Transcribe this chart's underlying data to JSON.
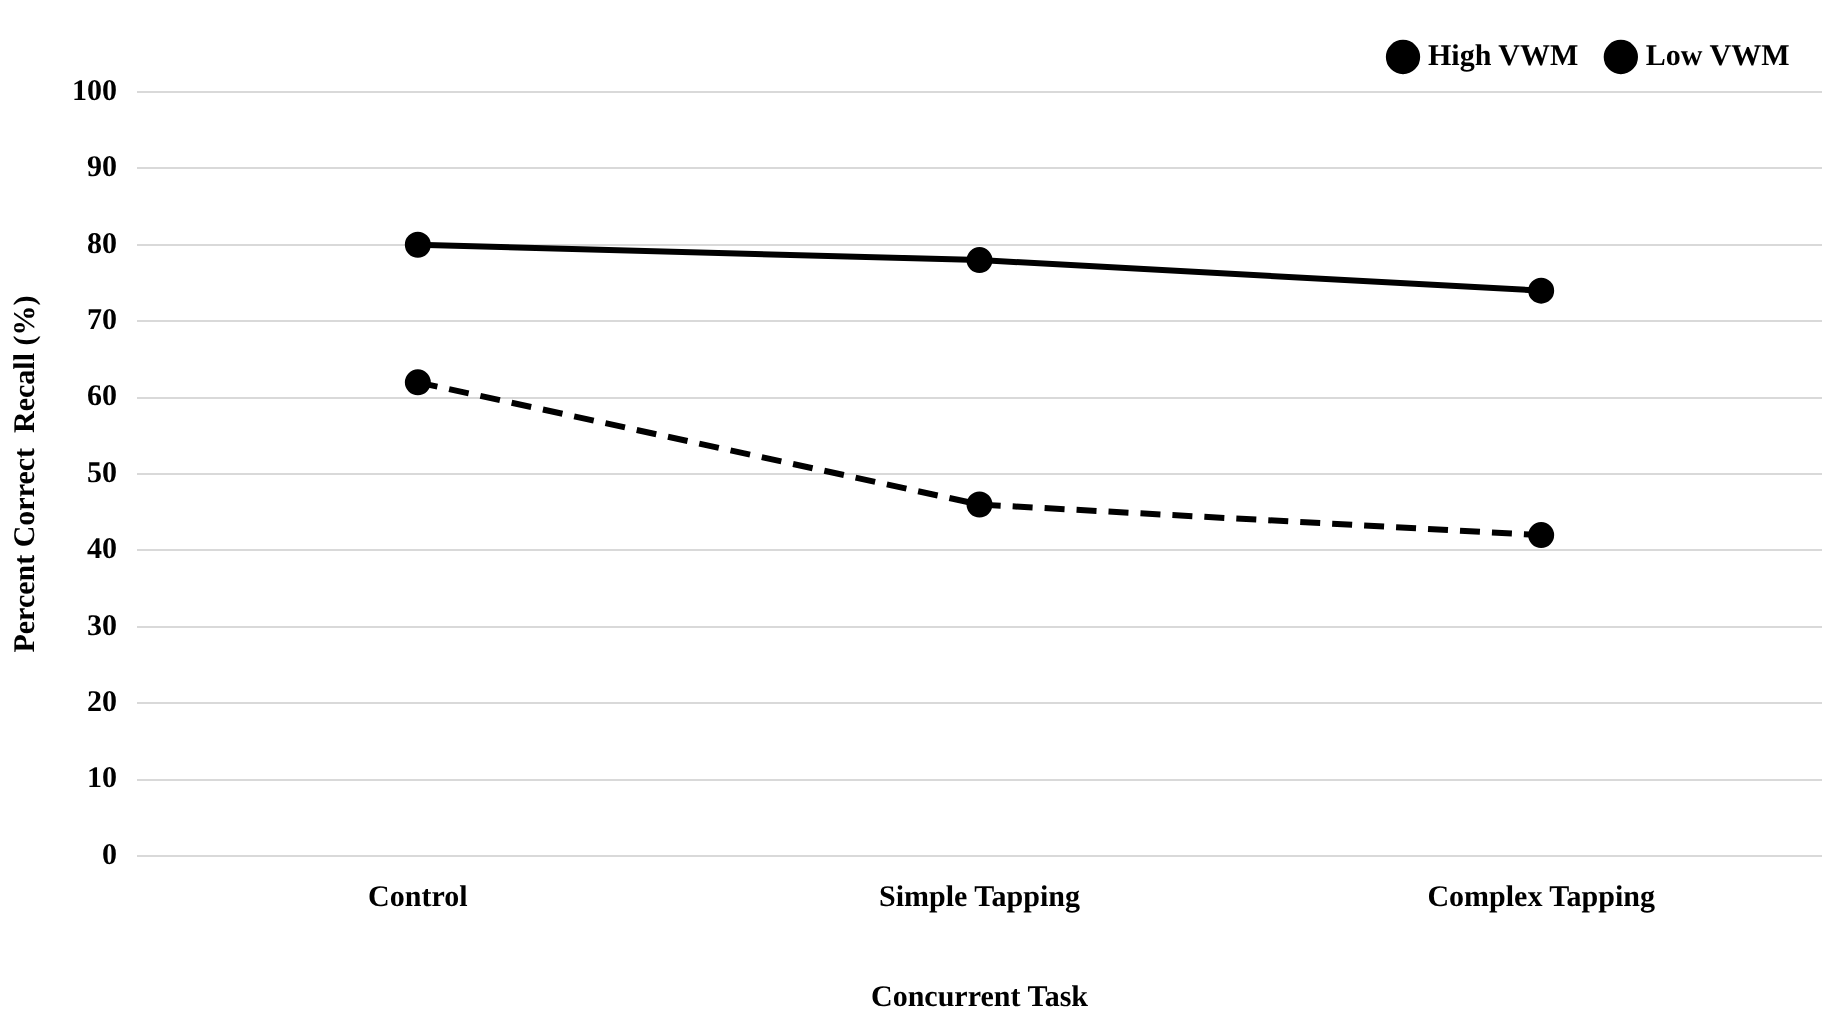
{
  "chart_data": {
    "type": "line",
    "xlabel": "Concurrent Task",
    "ylabel": "Percent Correct  Recall (%)",
    "categories": [
      "Control",
      "Simple Tapping",
      "Complex Tapping"
    ],
    "series": [
      {
        "name": "High VWM",
        "color": "#000000",
        "line_style": "solid",
        "values": [
          80,
          78,
          74
        ]
      },
      {
        "name": "Low VWM",
        "color": "#000000",
        "line_style": "dashed",
        "values": [
          62,
          46,
          42
        ]
      }
    ],
    "ylim": [
      0,
      100
    ],
    "yticks": [
      0,
      10,
      20,
      30,
      40,
      50,
      60,
      70,
      80,
      90,
      100
    ],
    "grid": "y",
    "legend": "top right",
    "marker": "circle"
  }
}
